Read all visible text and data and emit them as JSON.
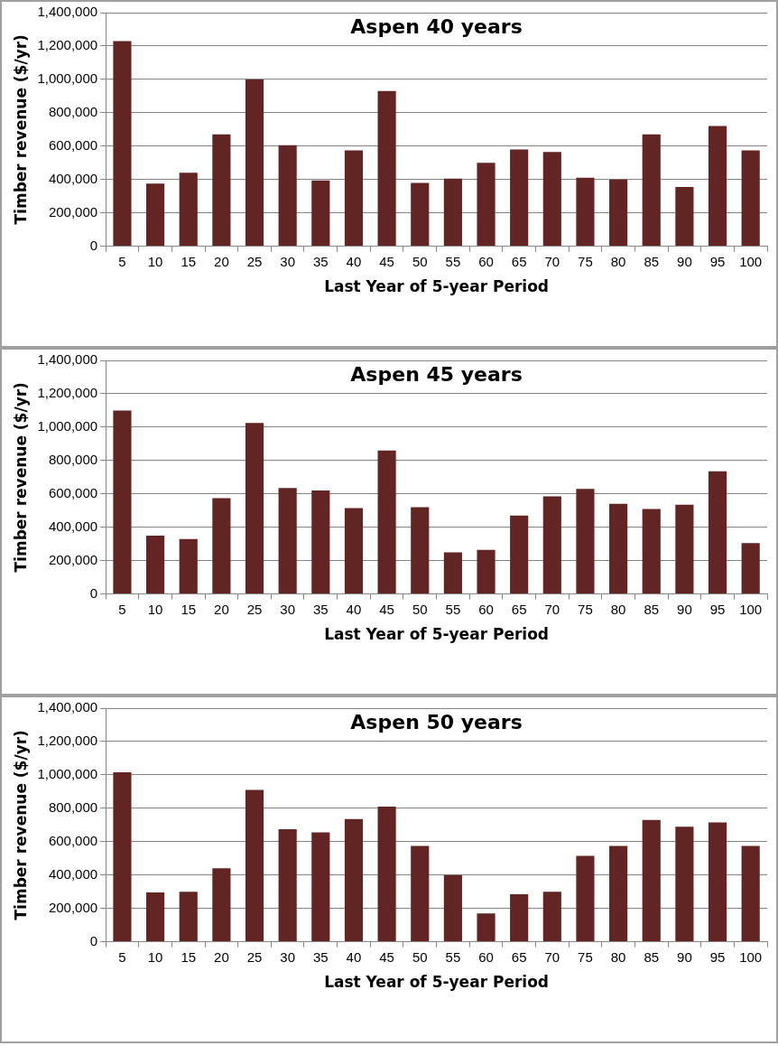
{
  "chart_data": [
    {
      "type": "bar",
      "title": "Aspen 40 years",
      "xlabel": "Last Year of 5-year Period",
      "ylabel": "Timber revenue ($/yr)",
      "categories": [
        "5",
        "10",
        "15",
        "20",
        "25",
        "30",
        "35",
        "40",
        "45",
        "50",
        "55",
        "60",
        "65",
        "70",
        "75",
        "80",
        "85",
        "90",
        "95",
        "100"
      ],
      "values": [
        1230000,
        375000,
        440000,
        670000,
        1000000,
        605000,
        395000,
        575000,
        930000,
        380000,
        405000,
        500000,
        580000,
        565000,
        410000,
        400000,
        670000,
        355000,
        720000,
        575000
      ],
      "color": "#632523",
      "ylim": [
        0,
        1400000
      ],
      "yticks": [
        {
          "value": 0,
          "label": "0"
        },
        {
          "value": 200000,
          "label": "200,000"
        },
        {
          "value": 400000,
          "label": "400,000"
        },
        {
          "value": 600000,
          "label": "600,000"
        },
        {
          "value": 800000,
          "label": "800,000"
        },
        {
          "value": 1000000,
          "label": "1,000,000"
        },
        {
          "value": 1200000,
          "label": "1,200,000"
        },
        {
          "value": 1400000,
          "label": "1,400,000"
        }
      ],
      "grid": "y",
      "legend": false
    },
    {
      "type": "bar",
      "title": "Aspen 45 years",
      "xlabel": "Last Year of 5-year Period",
      "ylabel": "Timber revenue ($/yr)",
      "categories": [
        "5",
        "10",
        "15",
        "20",
        "25",
        "30",
        "35",
        "40",
        "45",
        "50",
        "55",
        "60",
        "65",
        "70",
        "75",
        "80",
        "85",
        "90",
        "95",
        "100"
      ],
      "values": [
        1100000,
        350000,
        330000,
        575000,
        1025000,
        635000,
        620000,
        515000,
        860000,
        520000,
        250000,
        265000,
        470000,
        585000,
        630000,
        540000,
        510000,
        535000,
        735000,
        305000
      ],
      "color": "#632523",
      "ylim": [
        0,
        1400000
      ],
      "yticks": [
        {
          "value": 0,
          "label": "0"
        },
        {
          "value": 200000,
          "label": "200,000"
        },
        {
          "value": 400000,
          "label": "400,000"
        },
        {
          "value": 600000,
          "label": "600,000"
        },
        {
          "value": 800000,
          "label": "800,000"
        },
        {
          "value": 1000000,
          "label": "1,000,000"
        },
        {
          "value": 1200000,
          "label": "1,200,000"
        },
        {
          "value": 1400000,
          "label": "1,400,000"
        }
      ],
      "grid": "y",
      "legend": false
    },
    {
      "type": "bar",
      "title": "Aspen 50 years",
      "xlabel": "Last Year of 5-year Period",
      "ylabel": "Timber revenue ($/yr)",
      "categories": [
        "5",
        "10",
        "15",
        "20",
        "25",
        "30",
        "35",
        "40",
        "45",
        "50",
        "55",
        "60",
        "65",
        "70",
        "75",
        "80",
        "85",
        "90",
        "95",
        "100"
      ],
      "values": [
        1015000,
        295000,
        300000,
        440000,
        910000,
        675000,
        655000,
        735000,
        810000,
        575000,
        400000,
        170000,
        285000,
        300000,
        515000,
        575000,
        730000,
        690000,
        715000,
        575000
      ],
      "color": "#632523",
      "ylim": [
        0,
        1400000
      ],
      "yticks": [
        {
          "value": 0,
          "label": "0"
        },
        {
          "value": 200000,
          "label": "200,000"
        },
        {
          "value": 400000,
          "label": "400,000"
        },
        {
          "value": 600000,
          "label": "600,000"
        },
        {
          "value": 800000,
          "label": "800,000"
        },
        {
          "value": 1000000,
          "label": "1,000,000"
        },
        {
          "value": 1200000,
          "label": "1,200,000"
        },
        {
          "value": 1400000,
          "label": "1,400,000"
        }
      ],
      "grid": "y",
      "legend": false
    }
  ]
}
